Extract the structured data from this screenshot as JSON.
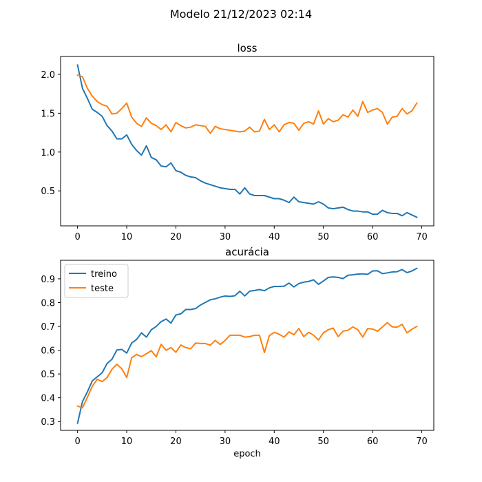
{
  "figure": {
    "suptitle": "Modelo 21/12/2023 02:14"
  },
  "chart_data": [
    {
      "type": "line",
      "title": "loss",
      "xlabel": "",
      "ylabel": "",
      "xlim": [
        -3.45,
        72.45
      ],
      "ylim": [
        0.05,
        2.23
      ],
      "xticks": [
        0,
        10,
        20,
        30,
        40,
        50,
        60,
        70
      ],
      "yticks": [
        0.5,
        1.0,
        1.5,
        2.0
      ],
      "ytick_labels": [
        "0.5",
        "1.0",
        "1.5",
        "2.0"
      ],
      "grid": false,
      "legend": false,
      "series": [
        {
          "color": "#1f77b4",
          "x": [
            0,
            1,
            2,
            3,
            4,
            5,
            6,
            7,
            8,
            9,
            10,
            11,
            12,
            13,
            14,
            15,
            16,
            17,
            18,
            19,
            20,
            21,
            22,
            23,
            24,
            25,
            26,
            27,
            28,
            29,
            30,
            31,
            32,
            33,
            34,
            35,
            36,
            37,
            38,
            39,
            40,
            41,
            42,
            43,
            44,
            45,
            46,
            47,
            48,
            49,
            50,
            51,
            52,
            53,
            54,
            55,
            56,
            57,
            58,
            59,
            60,
            61,
            62,
            63,
            64,
            65,
            66,
            67,
            68,
            69
          ],
          "y": [
            2.12,
            1.82,
            1.69,
            1.55,
            1.51,
            1.46,
            1.34,
            1.27,
            1.17,
            1.17,
            1.22,
            1.1,
            1.02,
            0.96,
            1.08,
            0.93,
            0.9,
            0.82,
            0.81,
            0.86,
            0.76,
            0.74,
            0.7,
            0.68,
            0.67,
            0.63,
            0.6,
            0.58,
            0.56,
            0.54,
            0.53,
            0.52,
            0.52,
            0.46,
            0.54,
            0.46,
            0.44,
            0.44,
            0.44,
            0.42,
            0.4,
            0.4,
            0.38,
            0.35,
            0.42,
            0.36,
            0.35,
            0.34,
            0.33,
            0.36,
            0.33,
            0.28,
            0.27,
            0.28,
            0.29,
            0.26,
            0.24,
            0.24,
            0.23,
            0.23,
            0.2,
            0.2,
            0.25,
            0.22,
            0.21,
            0.21,
            0.18,
            0.22,
            0.19,
            0.16
          ]
        },
        {
          "color": "#ff7f0e",
          "x": [
            0,
            1,
            2,
            3,
            4,
            5,
            6,
            7,
            8,
            9,
            10,
            11,
            12,
            13,
            14,
            15,
            16,
            17,
            18,
            19,
            20,
            21,
            22,
            23,
            24,
            25,
            26,
            27,
            28,
            29,
            30,
            31,
            32,
            33,
            34,
            35,
            36,
            37,
            38,
            39,
            40,
            41,
            42,
            43,
            44,
            45,
            46,
            47,
            48,
            49,
            50,
            51,
            52,
            53,
            54,
            55,
            56,
            57,
            58,
            59,
            60,
            61,
            62,
            63,
            64,
            65,
            66,
            67,
            68,
            69
          ],
          "y": [
            1.99,
            1.97,
            1.82,
            1.72,
            1.65,
            1.61,
            1.59,
            1.49,
            1.5,
            1.56,
            1.63,
            1.45,
            1.37,
            1.33,
            1.44,
            1.37,
            1.34,
            1.29,
            1.35,
            1.26,
            1.38,
            1.34,
            1.31,
            1.32,
            1.35,
            1.34,
            1.33,
            1.24,
            1.33,
            1.3,
            1.29,
            1.28,
            1.27,
            1.26,
            1.27,
            1.32,
            1.26,
            1.27,
            1.42,
            1.29,
            1.35,
            1.26,
            1.35,
            1.38,
            1.37,
            1.28,
            1.37,
            1.39,
            1.36,
            1.53,
            1.36,
            1.43,
            1.39,
            1.41,
            1.48,
            1.45,
            1.54,
            1.46,
            1.65,
            1.51,
            1.54,
            1.56,
            1.51,
            1.36,
            1.45,
            1.46,
            1.56,
            1.49,
            1.53,
            1.63
          ]
        }
      ]
    },
    {
      "type": "line",
      "title": "acurácia",
      "xlabel": "epoch",
      "ylabel": "",
      "xlim": [
        -3.45,
        72.45
      ],
      "ylim": [
        0.263,
        0.978
      ],
      "xticks": [
        0,
        10,
        20,
        30,
        40,
        50,
        60,
        70
      ],
      "yticks": [
        0.3,
        0.4,
        0.5,
        0.6,
        0.7,
        0.8,
        0.9
      ],
      "ytick_labels": [
        "0.3",
        "0.4",
        "0.5",
        "0.6",
        "0.7",
        "0.8",
        "0.9"
      ],
      "grid": false,
      "legend": "top-left",
      "series": [
        {
          "name": "treino",
          "color": "#1f77b4",
          "x": [
            0,
            1,
            2,
            3,
            4,
            5,
            6,
            7,
            8,
            9,
            10,
            11,
            12,
            13,
            14,
            15,
            16,
            17,
            18,
            19,
            20,
            21,
            22,
            23,
            24,
            25,
            26,
            27,
            28,
            29,
            30,
            31,
            32,
            33,
            34,
            35,
            36,
            37,
            38,
            39,
            40,
            41,
            42,
            43,
            44,
            45,
            46,
            47,
            48,
            49,
            50,
            51,
            52,
            53,
            54,
            55,
            56,
            57,
            58,
            59,
            60,
            61,
            62,
            63,
            64,
            65,
            66,
            67,
            68,
            69
          ],
          "y": [
            0.293,
            0.384,
            0.425,
            0.471,
            0.488,
            0.505,
            0.544,
            0.562,
            0.601,
            0.603,
            0.588,
            0.63,
            0.645,
            0.673,
            0.655,
            0.686,
            0.7,
            0.72,
            0.731,
            0.714,
            0.748,
            0.753,
            0.771,
            0.771,
            0.775,
            0.79,
            0.801,
            0.812,
            0.816,
            0.823,
            0.828,
            0.826,
            0.829,
            0.848,
            0.828,
            0.848,
            0.851,
            0.855,
            0.85,
            0.862,
            0.868,
            0.868,
            0.869,
            0.882,
            0.866,
            0.88,
            0.886,
            0.889,
            0.896,
            0.877,
            0.891,
            0.906,
            0.908,
            0.906,
            0.901,
            0.915,
            0.917,
            0.92,
            0.921,
            0.919,
            0.933,
            0.934,
            0.922,
            0.925,
            0.929,
            0.93,
            0.939,
            0.926,
            0.933,
            0.944
          ]
        },
        {
          "name": "teste",
          "color": "#ff7f0e",
          "x": [
            0,
            1,
            2,
            3,
            4,
            5,
            6,
            7,
            8,
            9,
            10,
            11,
            12,
            13,
            14,
            15,
            16,
            17,
            18,
            19,
            20,
            21,
            22,
            23,
            24,
            25,
            26,
            27,
            28,
            29,
            30,
            31,
            32,
            33,
            34,
            35,
            36,
            37,
            38,
            39,
            40,
            41,
            42,
            43,
            44,
            45,
            46,
            47,
            48,
            49,
            50,
            51,
            52,
            53,
            54,
            55,
            56,
            57,
            58,
            59,
            60,
            61,
            62,
            63,
            64,
            65,
            66,
            67,
            68,
            69
          ],
          "y": [
            0.365,
            0.358,
            0.402,
            0.448,
            0.478,
            0.468,
            0.485,
            0.52,
            0.541,
            0.522,
            0.485,
            0.568,
            0.582,
            0.573,
            0.585,
            0.598,
            0.572,
            0.625,
            0.6,
            0.611,
            0.591,
            0.622,
            0.611,
            0.606,
            0.63,
            0.628,
            0.628,
            0.621,
            0.641,
            0.624,
            0.641,
            0.663,
            0.663,
            0.663,
            0.655,
            0.657,
            0.663,
            0.663,
            0.59,
            0.661,
            0.675,
            0.667,
            0.655,
            0.677,
            0.665,
            0.691,
            0.657,
            0.675,
            0.663,
            0.643,
            0.673,
            0.686,
            0.693,
            0.657,
            0.68,
            0.684,
            0.698,
            0.686,
            0.655,
            0.691,
            0.689,
            0.68,
            0.698,
            0.716,
            0.698,
            0.697,
            0.709,
            0.673,
            0.688,
            0.7
          ]
        }
      ]
    }
  ]
}
